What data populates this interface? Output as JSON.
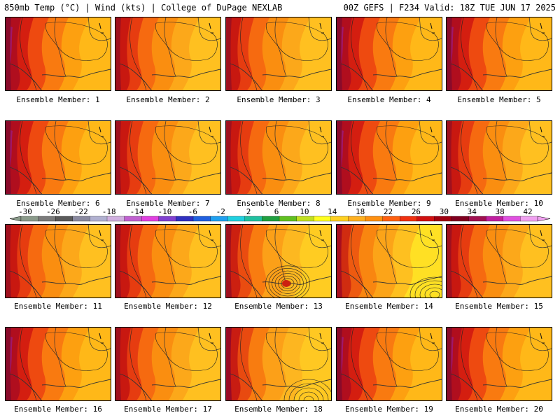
{
  "header": {
    "left": "850mb Temp (°C) | Wind (kts) | College of DuPage NEXLAB",
    "right": "00Z GEFS | F234 Valid: 18Z TUE JUN 17 2025"
  },
  "caption_prefix": "Ensemble Member:",
  "members": [
    {
      "label": "1",
      "style": "hot"
    },
    {
      "label": "2",
      "style": "warm"
    },
    {
      "label": "3",
      "style": "warm"
    },
    {
      "label": "4",
      "style": "hot"
    },
    {
      "label": "5",
      "style": "hot"
    },
    {
      "label": "6",
      "style": "hot"
    },
    {
      "label": "7",
      "style": "warm"
    },
    {
      "label": "8",
      "style": "warm"
    },
    {
      "label": "9",
      "style": "hot"
    },
    {
      "label": "10",
      "style": "warm"
    },
    {
      "label": "11",
      "style": "warm"
    },
    {
      "label": "12",
      "style": "warm"
    },
    {
      "label": "13",
      "style": "storm"
    },
    {
      "label": "14",
      "style": "storm2"
    },
    {
      "label": "15",
      "style": "warm"
    },
    {
      "label": "16",
      "style": "hot"
    },
    {
      "label": "17",
      "style": "warm"
    },
    {
      "label": "18",
      "style": "storm3"
    },
    {
      "label": "19",
      "style": "hot"
    },
    {
      "label": "20",
      "style": "hot"
    }
  ],
  "colorbar": {
    "labels": [
      "-30",
      "-26",
      "-22",
      "-18",
      "-14",
      "-10",
      "-6",
      "-2",
      "2",
      "6",
      "10",
      "14",
      "18",
      "22",
      "26",
      "30",
      "34",
      "38",
      "42"
    ],
    "colors": [
      "#8a9a8a",
      "#7a7a7a",
      "#5a5a5a",
      "#8a8aa0",
      "#b0b0d0",
      "#d0b0e0",
      "#c060d0",
      "#e040e0",
      "#8040d0",
      "#3030c0",
      "#2060e0",
      "#20a0f0",
      "#20d0e0",
      "#20c0a0",
      "#20a040",
      "#60c020",
      "#c0e020",
      "#ffff20",
      "#ffd020",
      "#ffb020",
      "#ff9010",
      "#ff6010",
      "#f03010",
      "#d01010",
      "#a00010",
      "#800020",
      "#a01050",
      "#c020a0",
      "#e050e0",
      "#f0a0f0"
    ]
  }
}
